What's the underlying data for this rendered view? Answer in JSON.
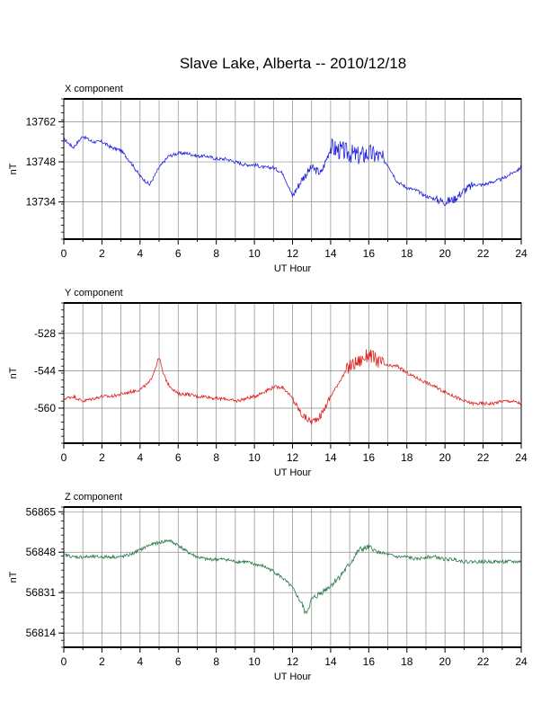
{
  "title": "Slave Lake, Alberta -- 2010/12/18",
  "chart_data": [
    {
      "type": "line",
      "title": "X component",
      "xlabel": "UT Hour",
      "ylabel": "nT",
      "xlim": [
        0,
        24
      ],
      "ylim": [
        13721,
        13770
      ],
      "xticks": [
        0,
        2,
        4,
        6,
        8,
        10,
        12,
        14,
        16,
        18,
        20,
        22,
        24
      ],
      "yticks": [
        13734,
        13748,
        13762
      ],
      "color": "#2323e0",
      "series": [
        {
          "x": [
            0,
            0.5,
            1.0,
            1.5,
            2.0,
            2.5,
            3.0,
            3.5,
            4.0,
            4.5,
            5.0,
            5.5,
            6.0,
            6.5,
            7.0,
            7.5,
            8.0,
            8.5,
            9.0,
            9.5,
            10.0,
            10.5,
            11.0,
            11.5,
            12.0,
            12.5,
            13.0,
            13.5,
            14.0,
            14.5,
            15.0,
            15.5,
            16.0,
            16.5,
            17.0,
            17.5,
            18.0,
            18.5,
            19.0,
            19.5,
            20.0,
            20.5,
            21.0,
            21.5,
            22.0,
            22.5,
            23.0,
            23.5,
            24.0
          ],
          "values": [
            13756,
            13753,
            13757,
            13755,
            13755,
            13753,
            13752,
            13748,
            13743,
            13740,
            13746,
            13750,
            13751,
            13751,
            13750,
            13750,
            13749,
            13749,
            13748,
            13747,
            13747,
            13746,
            13746,
            13744,
            13736,
            13742,
            13746,
            13744,
            13753,
            13752,
            13751,
            13750,
            13751,
            13750,
            13747,
            13741,
            13739,
            13738,
            13736,
            13735,
            13734,
            13735,
            13738,
            13740,
            13740,
            13741,
            13742,
            13744,
            13746
          ]
        }
      ]
    },
    {
      "type": "line",
      "title": "Y component",
      "xlabel": "UT Hour",
      "ylabel": "nT",
      "xlim": [
        0,
        24
      ],
      "ylim": [
        -575,
        -515
      ],
      "xticks": [
        0,
        2,
        4,
        6,
        8,
        10,
        12,
        14,
        16,
        18,
        20,
        22,
        24
      ],
      "yticks": [
        -528,
        -544,
        -560
      ],
      "color": "#e02020",
      "series": [
        {
          "x": [
            0,
            0.5,
            1.0,
            1.5,
            2.0,
            2.5,
            3.0,
            3.5,
            4.0,
            4.5,
            4.8,
            5.0,
            5.2,
            5.5,
            6.0,
            6.5,
            7.0,
            7.5,
            8.0,
            8.5,
            9.0,
            9.5,
            10.0,
            10.5,
            11.0,
            11.5,
            12.0,
            12.5,
            13.0,
            13.5,
            14.0,
            14.5,
            15.0,
            15.5,
            16.0,
            16.5,
            17.0,
            17.5,
            18.0,
            18.5,
            19.0,
            19.5,
            20.0,
            20.5,
            21.0,
            21.5,
            22.0,
            22.5,
            23.0,
            23.5,
            24.0
          ],
          "values": [
            -556,
            -555,
            -557,
            -556,
            -555,
            -555,
            -554,
            -553,
            -552,
            -549,
            -543,
            -538,
            -545,
            -550,
            -554,
            -554,
            -555,
            -555,
            -556,
            -556,
            -557,
            -556,
            -555,
            -553,
            -551,
            -551,
            -556,
            -563,
            -566,
            -563,
            -555,
            -548,
            -542,
            -540,
            -537,
            -540,
            -542,
            -542,
            -545,
            -547,
            -549,
            -551,
            -553,
            -555,
            -557,
            -558,
            -558,
            -558,
            -557,
            -557,
            -558
          ]
        }
      ]
    },
    {
      "type": "line",
      "title": "Z component",
      "xlabel": "UT Hour",
      "ylabel": "nT",
      "xlim": [
        0,
        24
      ],
      "ylim": [
        56808,
        56867
      ],
      "xticks": [
        0,
        2,
        4,
        6,
        8,
        10,
        12,
        14,
        16,
        18,
        20,
        22,
        24
      ],
      "yticks": [
        56814,
        56831,
        56848,
        56865
      ],
      "color": "#2a7a4a",
      "series": [
        {
          "x": [
            0,
            0.5,
            1.0,
            1.5,
            2.0,
            2.5,
            3.0,
            3.5,
            4.0,
            4.5,
            5.0,
            5.5,
            6.0,
            6.5,
            7.0,
            7.5,
            8.0,
            8.5,
            9.0,
            9.5,
            10.0,
            10.5,
            11.0,
            11.5,
            12.0,
            12.5,
            12.7,
            13.0,
            13.5,
            14.0,
            14.5,
            15.0,
            15.5,
            16.0,
            16.5,
            17.0,
            17.5,
            18.0,
            18.5,
            19.0,
            19.5,
            20.0,
            20.5,
            21.0,
            21.5,
            22.0,
            22.5,
            23.0,
            23.5,
            24.0
          ],
          "values": [
            56847,
            56846,
            56846,
            56846,
            56846,
            56846,
            56846,
            56847,
            56849,
            56851,
            56852,
            56853,
            56851,
            56848,
            56846,
            56845,
            56845,
            56845,
            56844,
            56844,
            56843,
            56842,
            56840,
            56837,
            56833,
            56826,
            56822,
            56828,
            56831,
            56834,
            56838,
            56843,
            56849,
            56850,
            56848,
            56847,
            56846,
            56846,
            56845,
            56846,
            56846,
            56845,
            56845,
            56844,
            56844,
            56844,
            56844,
            56844,
            56844,
            56844
          ]
        }
      ]
    }
  ]
}
